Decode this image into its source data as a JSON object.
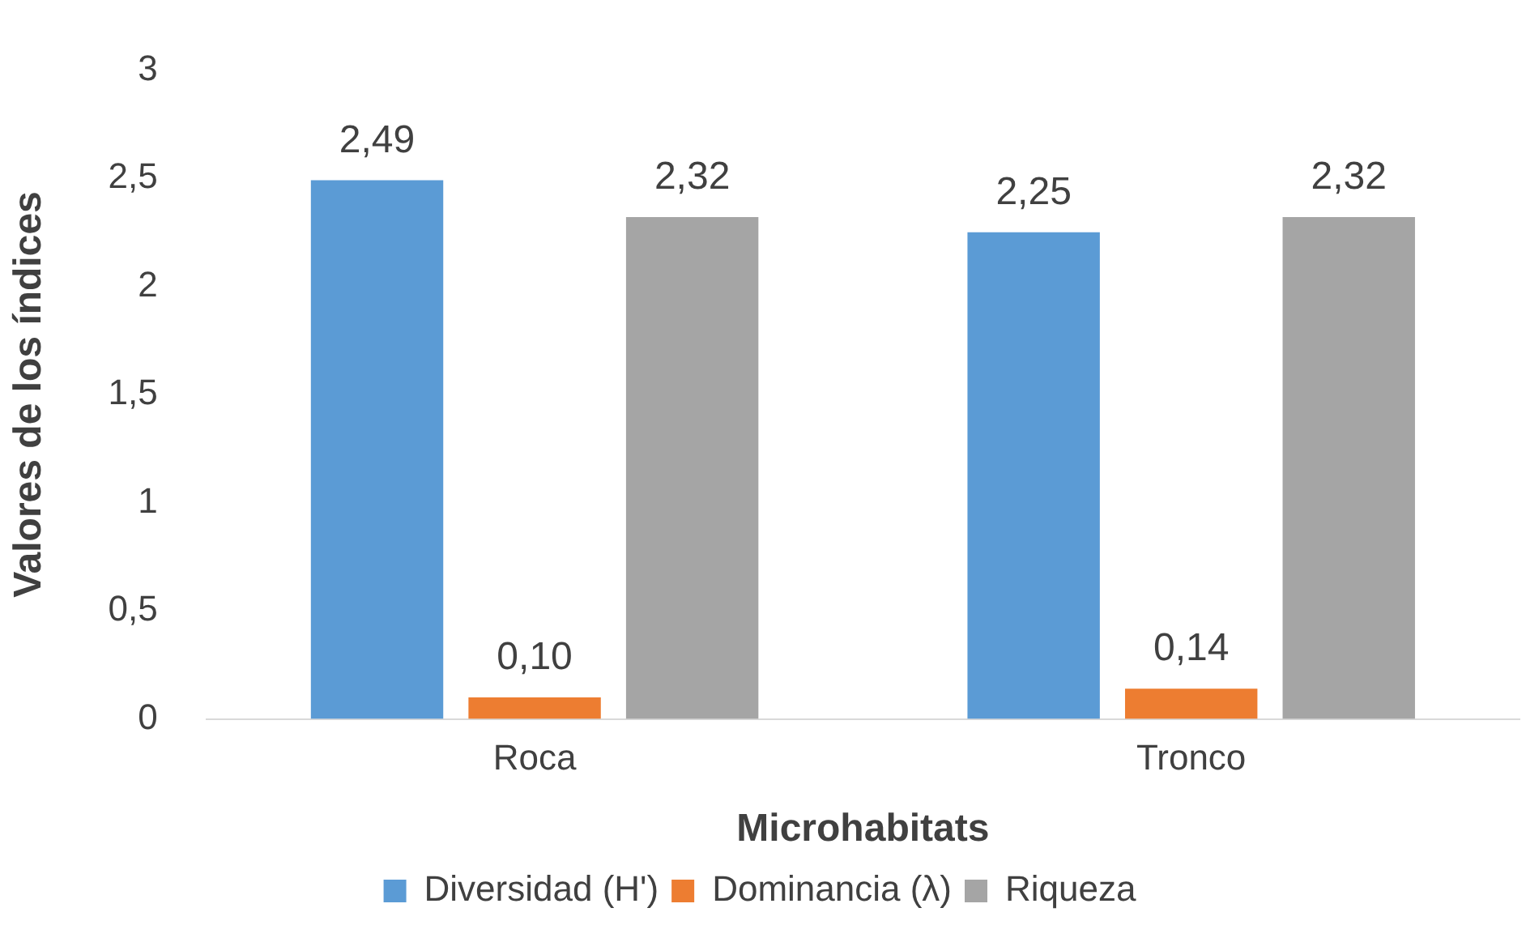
{
  "chart_data": {
    "type": "bar",
    "xlabel": "Microhabitats",
    "ylabel": "Valores de los índices",
    "categories": [
      "Roca",
      "Tronco"
    ],
    "series": [
      {
        "name": "Diversidad (H')",
        "color": "#5b9bd5",
        "values": [
          2.49,
          2.25
        ],
        "value_labels": [
          "2,49",
          "2,25"
        ]
      },
      {
        "name": "Dominancia (λ)",
        "color": "#ed7d31",
        "values": [
          0.1,
          0.14
        ],
        "value_labels": [
          "0,10",
          "0,14"
        ]
      },
      {
        "name": "Riqueza",
        "color": "#a5a5a5",
        "values": [
          2.32,
          2.32
        ],
        "value_labels": [
          "2,32",
          "2,32"
        ]
      }
    ],
    "ylim": [
      0,
      3
    ],
    "yticks": [
      0,
      {
        "value": 0.5,
        "label": "0,5"
      },
      1,
      {
        "value": 1.5,
        "label": "1,5"
      },
      2,
      {
        "value": 2.5,
        "label": "2,5"
      },
      3
    ],
    "grid": false,
    "legend": "bottom"
  }
}
